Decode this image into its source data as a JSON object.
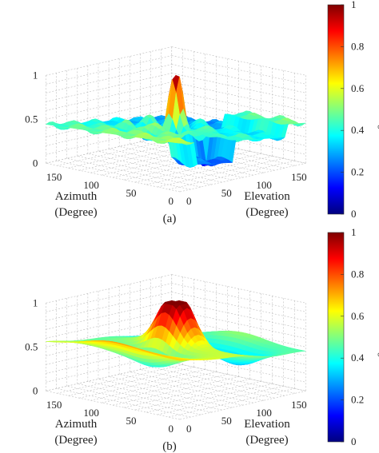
{
  "chart_data": [
    {
      "type": "surface",
      "panel_label": "(a)",
      "xlabel": "Elevation",
      "xlabel_unit": "(Degree)",
      "ylabel": "Azimuth",
      "ylabel_unit": "(Degree)",
      "x_ticks": [
        0,
        50,
        100,
        150
      ],
      "y_ticks": [
        0,
        50,
        100,
        150
      ],
      "z_ticks": [
        0,
        0.5,
        1
      ],
      "xlim": [
        0,
        180
      ],
      "ylim": [
        0,
        180
      ],
      "zlim": [
        0,
        1
      ],
      "grid": true,
      "colormap": "jet",
      "peak": {
        "elevation": 90,
        "azimuth": 90,
        "value": 1.0
      },
      "baseline_level": 0.5,
      "colorbar": {
        "title": "Normalized Magnitude",
        "ticks": [
          0,
          0.2,
          0.4,
          0.6,
          0.8,
          1
        ]
      }
    },
    {
      "type": "surface",
      "panel_label": "(b)",
      "xlabel": "Elevation",
      "xlabel_unit": "(Degree)",
      "ylabel": "Azimuth",
      "ylabel_unit": "(Degree)",
      "x_ticks": [
        0,
        50,
        100,
        150
      ],
      "y_ticks": [
        0,
        50,
        100,
        150
      ],
      "z_ticks": [
        0,
        0.5,
        1
      ],
      "xlim": [
        0,
        180
      ],
      "ylim": [
        0,
        180
      ],
      "zlim": [
        0,
        1
      ],
      "grid": true,
      "colormap": "jet",
      "peak": {
        "elevation": 90,
        "azimuth": 90,
        "value": 1.0
      },
      "baseline_level": 0.5,
      "colorbar": {
        "title": "Normalized Magnitude",
        "ticks": [
          0,
          0.2,
          0.4,
          0.6,
          0.8,
          1
        ]
      }
    }
  ]
}
